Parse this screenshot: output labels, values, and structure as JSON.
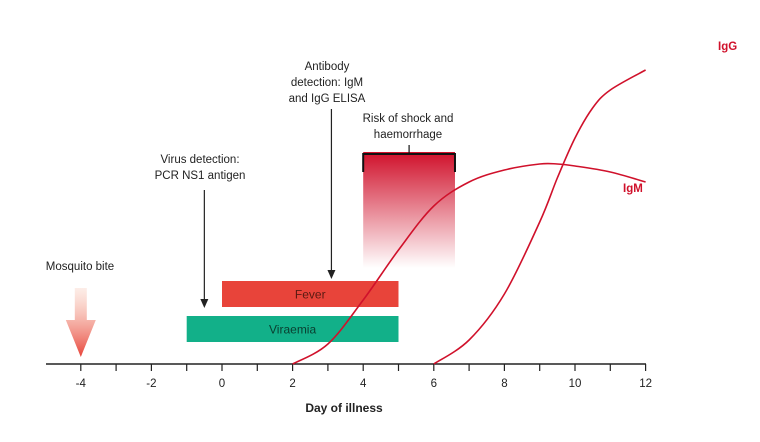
{
  "chart_data": {
    "type": "line",
    "title": "",
    "xlabel": "Day of illness",
    "ylabel": "",
    "xlim": [
      -5,
      12
    ],
    "x_ticks": [
      -4,
      -2,
      0,
      2,
      4,
      6,
      8,
      10,
      12
    ],
    "grid": false,
    "series": [
      {
        "name": "IgM",
        "color": "#d0112b",
        "x": [
          2,
          3,
          4,
          5,
          6,
          7,
          8,
          9,
          9.5,
          10,
          11,
          12
        ],
        "y": [
          0,
          0.1,
          0.32,
          0.57,
          0.79,
          0.91,
          0.97,
          1.0,
          1.0,
          0.99,
          0.96,
          0.91
        ]
      },
      {
        "name": "IgG",
        "color": "#d0112b",
        "x": [
          6,
          7,
          8,
          9,
          9.5,
          10,
          10.5,
          11,
          12
        ],
        "y": [
          0,
          0.12,
          0.35,
          0.71,
          0.93,
          1.13,
          1.28,
          1.37,
          1.47
        ]
      }
    ],
    "bars": [
      {
        "label": "Fever",
        "start": 0,
        "end": 5,
        "color": "#e8443a",
        "text_color": "#5a1a12"
      },
      {
        "label": "Viraemia",
        "start": -1,
        "end": 5,
        "color": "#12b089",
        "text_color": "#0a3d2f"
      }
    ],
    "risk_window": {
      "start": 4,
      "end": 6.6,
      "color": "#d0112b"
    },
    "annotations": [
      {
        "lines": [
          "Mosquito bite"
        ],
        "x": -4
      },
      {
        "lines": [
          "Virus detection:",
          "PCR NS1 antigen"
        ],
        "x": -0.5
      },
      {
        "lines": [
          "Antibody",
          "detection: IgM",
          "and IgG ELISA"
        ],
        "x": 3.1
      },
      {
        "lines": [
          "Risk of shock and",
          "haemorrhage"
        ],
        "x": 5.3
      }
    ]
  }
}
